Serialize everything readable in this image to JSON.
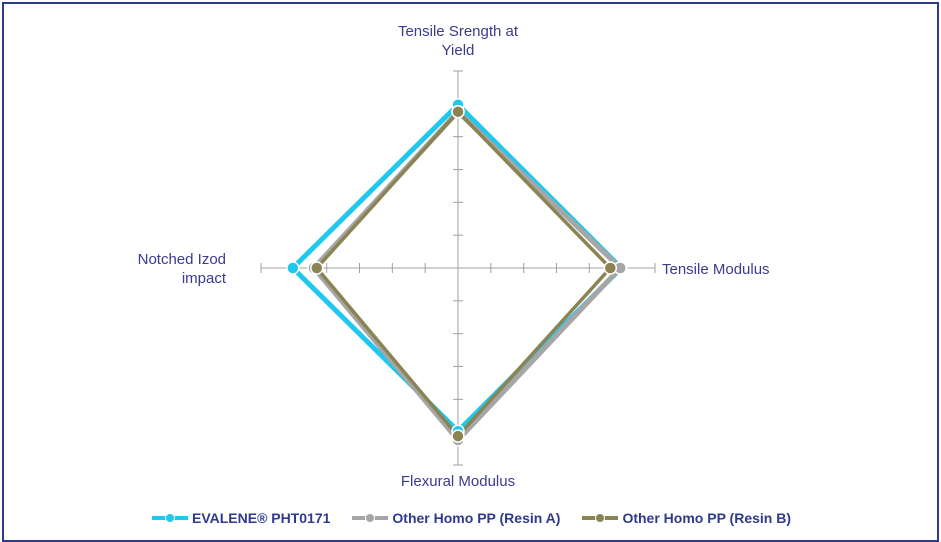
{
  "chart_data": {
    "type": "radar",
    "axes": [
      "Tensile Srength at Yield",
      "Tensile Modulus",
      "Flexural Modulus",
      "Notched Izod impact"
    ],
    "axis_label_lines": [
      [
        "Tensile Srength at",
        "Yield"
      ],
      [
        "Tensile Modulus"
      ],
      [
        "Flexural Modulus"
      ],
      [
        "Notched Izod",
        "impact"
      ]
    ],
    "range": [
      0,
      6
    ],
    "tick_count": 6,
    "grid": false,
    "legend_position": "bottom",
    "series": [
      {
        "name": "EVALENE® PHT0171",
        "color": "#1ec8ef",
        "values": [
          4.97,
          4.97,
          4.97,
          5.03
        ]
      },
      {
        "name": "Other Homo PP (Resin A)",
        "color": "#a6a6a6",
        "values": [
          4.76,
          4.94,
          5.24,
          4.39
        ]
      },
      {
        "name": "Other Homo PP (Resin B)",
        "color": "#8c8353",
        "values": [
          4.76,
          4.64,
          5.12,
          4.3
        ]
      }
    ]
  }
}
